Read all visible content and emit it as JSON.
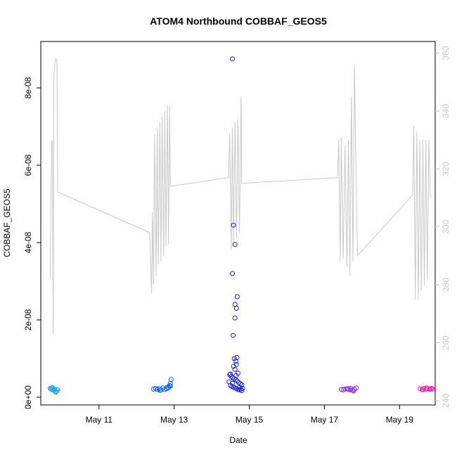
{
  "chart_data": {
    "type": "scatter",
    "title": "ATOM4 Northbound COBBAF_GEOS5",
    "xlabel": "Date",
    "ylabel": "COBBAF_GEOS5",
    "xlim": [
      9.45,
      19.95
    ],
    "ylim": [
      -2e-09,
      9.2e-08
    ],
    "y2lim": [
      238.5,
      364
    ],
    "x_ticks": [
      {
        "value": 11,
        "label": "May 11"
      },
      {
        "value": 13,
        "label": "May 13"
      },
      {
        "value": 15,
        "label": "May 15"
      },
      {
        "value": 17,
        "label": "May 17"
      },
      {
        "value": 19,
        "label": "May 19"
      }
    ],
    "y_ticks": [
      {
        "value": 0,
        "label": "0e+00"
      },
      {
        "value": 2e-08,
        "label": "2e-08"
      },
      {
        "value": 4e-08,
        "label": "4e-08"
      },
      {
        "value": 6e-08,
        "label": "6e-08"
      },
      {
        "value": 8e-08,
        "label": "8e-08"
      }
    ],
    "y2_ticks": [
      {
        "value": 240,
        "label": "240"
      },
      {
        "value": 260,
        "label": "260"
      },
      {
        "value": 280,
        "label": "280"
      },
      {
        "value": 300,
        "label": "300"
      },
      {
        "value": 320,
        "label": "320"
      },
      {
        "value": 340,
        "label": "340"
      },
      {
        "value": 360,
        "label": "360"
      }
    ],
    "grid": false,
    "line_color": "#c8c8c8",
    "scatter_series": [
      {
        "color": "#1eaaf0",
        "points": [
          [
            9.7,
            2.3e-09
          ],
          [
            9.72,
            2.1e-09
          ],
          [
            9.74,
            2.4e-09
          ],
          [
            9.76,
            1.9e-09
          ],
          [
            9.78,
            2.2e-09
          ],
          [
            9.8,
            1.8e-09
          ],
          [
            9.82,
            2e-09
          ],
          [
            9.84,
            1.6e-09
          ],
          [
            9.86,
            1.5e-09
          ],
          [
            9.88,
            2e-09
          ],
          [
            9.85,
            1.3e-09
          ],
          [
            9.76,
            2.5e-09
          ],
          [
            9.9,
            1.9e-09
          ]
        ]
      },
      {
        "color": "#0a5af0",
        "points": [
          [
            12.45,
            2.1e-09
          ],
          [
            12.5,
            2.3e-09
          ],
          [
            12.55,
            2e-09
          ],
          [
            12.6,
            2.2e-09
          ],
          [
            12.65,
            1.9e-09
          ],
          [
            12.7,
            2.4e-09
          ],
          [
            12.75,
            2e-09
          ],
          [
            12.8,
            2.2e-09
          ],
          [
            12.85,
            2.5e-09
          ],
          [
            12.88,
            3e-09
          ],
          [
            12.9,
            3.6e-09
          ],
          [
            12.92,
            4.6e-09
          ],
          [
            12.62,
            1.8e-09
          ],
          [
            12.82,
            2.6e-09
          ],
          [
            12.9,
            2.9e-09
          ]
        ]
      },
      {
        "color": "#2020d8",
        "points": [
          [
            14.55,
            8.75e-08
          ],
          [
            14.58,
            4.45e-08
          ],
          [
            14.62,
            3.95e-08
          ],
          [
            14.55,
            3.2e-08
          ],
          [
            14.68,
            2.6e-08
          ],
          [
            14.62,
            2.4e-08
          ],
          [
            14.66,
            2.3e-08
          ],
          [
            14.62,
            2.05e-08
          ],
          [
            14.57,
            1.6e-08
          ],
          [
            14.6,
            1e-08
          ],
          [
            14.67,
            1.03e-08
          ],
          [
            14.64,
            9.3e-09
          ],
          [
            14.66,
            8.5e-09
          ],
          [
            14.58,
            8e-09
          ],
          [
            14.62,
            7.2e-09
          ],
          [
            14.7,
            6.2e-09
          ],
          [
            14.48,
            5.8e-09
          ],
          [
            14.52,
            5.4e-09
          ],
          [
            14.56,
            5e-09
          ],
          [
            14.6,
            4.8e-09
          ],
          [
            14.64,
            4.5e-09
          ],
          [
            14.68,
            4.2e-09
          ],
          [
            14.72,
            3.8e-09
          ],
          [
            14.76,
            3.5e-09
          ],
          [
            14.8,
            3.2e-09
          ],
          [
            14.5,
            3e-09
          ],
          [
            14.54,
            2.8e-09
          ],
          [
            14.58,
            2.6e-09
          ],
          [
            14.62,
            2.4e-09
          ],
          [
            14.66,
            2.2e-09
          ],
          [
            14.7,
            2e-09
          ],
          [
            14.74,
            1.9e-09
          ],
          [
            14.78,
            2.1e-09
          ],
          [
            14.82,
            2.3e-09
          ],
          [
            14.46,
            4e-09
          ],
          [
            14.5,
            6e-09
          ],
          [
            14.74,
            2.6e-09
          ],
          [
            14.8,
            1.7e-09
          ],
          [
            14.55,
            3.6e-09
          ],
          [
            14.65,
            5.6e-09
          ]
        ]
      },
      {
        "color": "#8a2be2",
        "points": [
          [
            17.45,
            2e-09
          ],
          [
            17.5,
            1.9e-09
          ],
          [
            17.55,
            2.1e-09
          ],
          [
            17.6,
            2.2e-09
          ],
          [
            17.65,
            2e-09
          ],
          [
            17.7,
            2.3e-09
          ],
          [
            17.75,
            1.8e-09
          ],
          [
            17.8,
            2.1e-09
          ],
          [
            17.85,
            2.4e-09
          ],
          [
            17.78,
            1.6e-09
          ],
          [
            17.7,
            1.9e-09
          ],
          [
            17.62,
            2.2e-09
          ]
        ]
      },
      {
        "color": "#f01eaa",
        "points": [
          [
            19.55,
            2.2e-09
          ],
          [
            19.6,
            2e-09
          ],
          [
            19.65,
            2.3e-09
          ],
          [
            19.7,
            2.1e-09
          ],
          [
            19.75,
            2.2e-09
          ],
          [
            19.8,
            2e-09
          ],
          [
            19.85,
            2.3e-09
          ],
          [
            19.88,
            2.1e-09
          ],
          [
            19.62,
            1.9e-09
          ],
          [
            19.72,
            2.4e-09
          ],
          [
            19.82,
            2.2e-09
          ]
        ]
      }
    ],
    "line_series": [
      [
        [
          9.7,
          282
        ],
        [
          9.72,
          307
        ],
        [
          9.74,
          329
        ],
        [
          9.76,
          330
        ],
        [
          9.78,
          263
        ],
        [
          9.8,
          352
        ],
        [
          9.82,
          356
        ],
        [
          9.84,
          358
        ],
        [
          9.86,
          358
        ],
        [
          9.88,
          357
        ],
        [
          9.9,
          312
        ]
      ],
      [
        [
          12.35,
          298
        ],
        [
          12.4,
          277
        ],
        [
          12.42,
          305
        ],
        [
          12.45,
          280
        ],
        [
          12.48,
          332
        ],
        [
          12.52,
          283
        ],
        [
          12.55,
          334
        ],
        [
          12.58,
          287
        ],
        [
          12.62,
          336
        ],
        [
          12.65,
          288
        ],
        [
          12.68,
          338
        ],
        [
          12.72,
          290
        ],
        [
          12.75,
          340
        ],
        [
          12.78,
          293
        ],
        [
          12.82,
          342
        ],
        [
          12.85,
          294
        ],
        [
          12.88,
          342
        ],
        [
          12.9,
          314
        ]
      ],
      [
        [
          14.45,
          317
        ],
        [
          14.48,
          332
        ],
        [
          14.52,
          292
        ],
        [
          14.55,
          334
        ],
        [
          14.58,
          294
        ],
        [
          14.62,
          336
        ],
        [
          14.66,
          296
        ],
        [
          14.7,
          337
        ],
        [
          14.74,
          298
        ],
        [
          14.78,
          345
        ],
        [
          14.8,
          315
        ]
      ],
      [
        [
          17.35,
          317
        ],
        [
          17.38,
          330
        ],
        [
          17.42,
          288
        ],
        [
          17.45,
          331
        ],
        [
          17.5,
          289
        ],
        [
          17.55,
          328
        ],
        [
          17.6,
          286
        ],
        [
          17.64,
          330
        ],
        [
          17.68,
          283
        ],
        [
          17.72,
          345
        ],
        [
          17.76,
          288
        ],
        [
          17.8,
          356
        ],
        [
          17.84,
          320
        ],
        [
          17.88,
          290
        ]
      ],
      [
        [
          19.35,
          311
        ],
        [
          19.38,
          335
        ],
        [
          19.42,
          275
        ],
        [
          19.46,
          333
        ],
        [
          19.5,
          275
        ],
        [
          19.54,
          330
        ],
        [
          19.58,
          278
        ],
        [
          19.62,
          330
        ],
        [
          19.66,
          280
        ],
        [
          19.7,
          330
        ],
        [
          19.74,
          282
        ],
        [
          19.78,
          330
        ],
        [
          19.82,
          310
        ]
      ]
    ],
    "line_connectors": [
      [
        [
          9.9,
          312
        ],
        [
          12.35,
          298
        ]
      ],
      [
        [
          12.9,
          314
        ],
        [
          14.45,
          317
        ]
      ],
      [
        [
          14.8,
          315
        ],
        [
          17.35,
          317
        ]
      ],
      [
        [
          17.88,
          290
        ],
        [
          19.35,
          311
        ]
      ]
    ]
  }
}
